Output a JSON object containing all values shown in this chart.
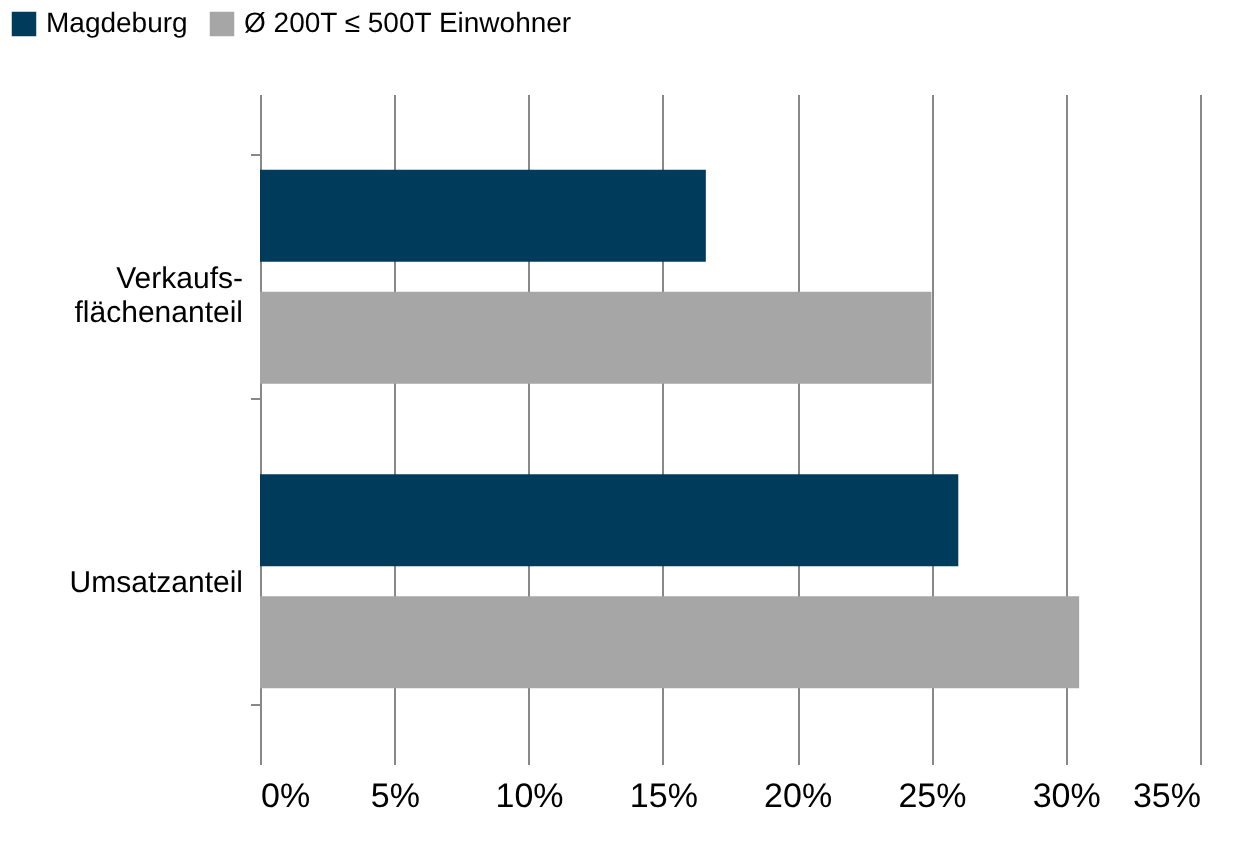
{
  "chart_data": {
    "type": "bar",
    "orientation": "horizontal",
    "categories": [
      "Verkaufs-\nflächenanteil",
      "Umsatzanteil"
    ],
    "series": [
      {
        "name": "Magdeburg",
        "color": "#003b5c",
        "values": [
          16.6,
          26
        ]
      },
      {
        "name": "Ø 200T ≤ 500T Einwohner",
        "color": "#a6a6a6",
        "values": [
          25,
          30.5
        ]
      }
    ],
    "xlim": [
      0,
      35
    ],
    "xticks": [
      {
        "value": 0,
        "label": "0%"
      },
      {
        "value": 5,
        "label": "5%"
      },
      {
        "value": 10,
        "label": "10%"
      },
      {
        "value": 15,
        "label": "15%"
      },
      {
        "value": 20,
        "label": "20%"
      },
      {
        "value": 25,
        "label": "25%"
      },
      {
        "value": 30,
        "label": "30%"
      },
      {
        "value": 35,
        "label": "35%"
      }
    ],
    "grid": "x",
    "legend": "top left"
  }
}
